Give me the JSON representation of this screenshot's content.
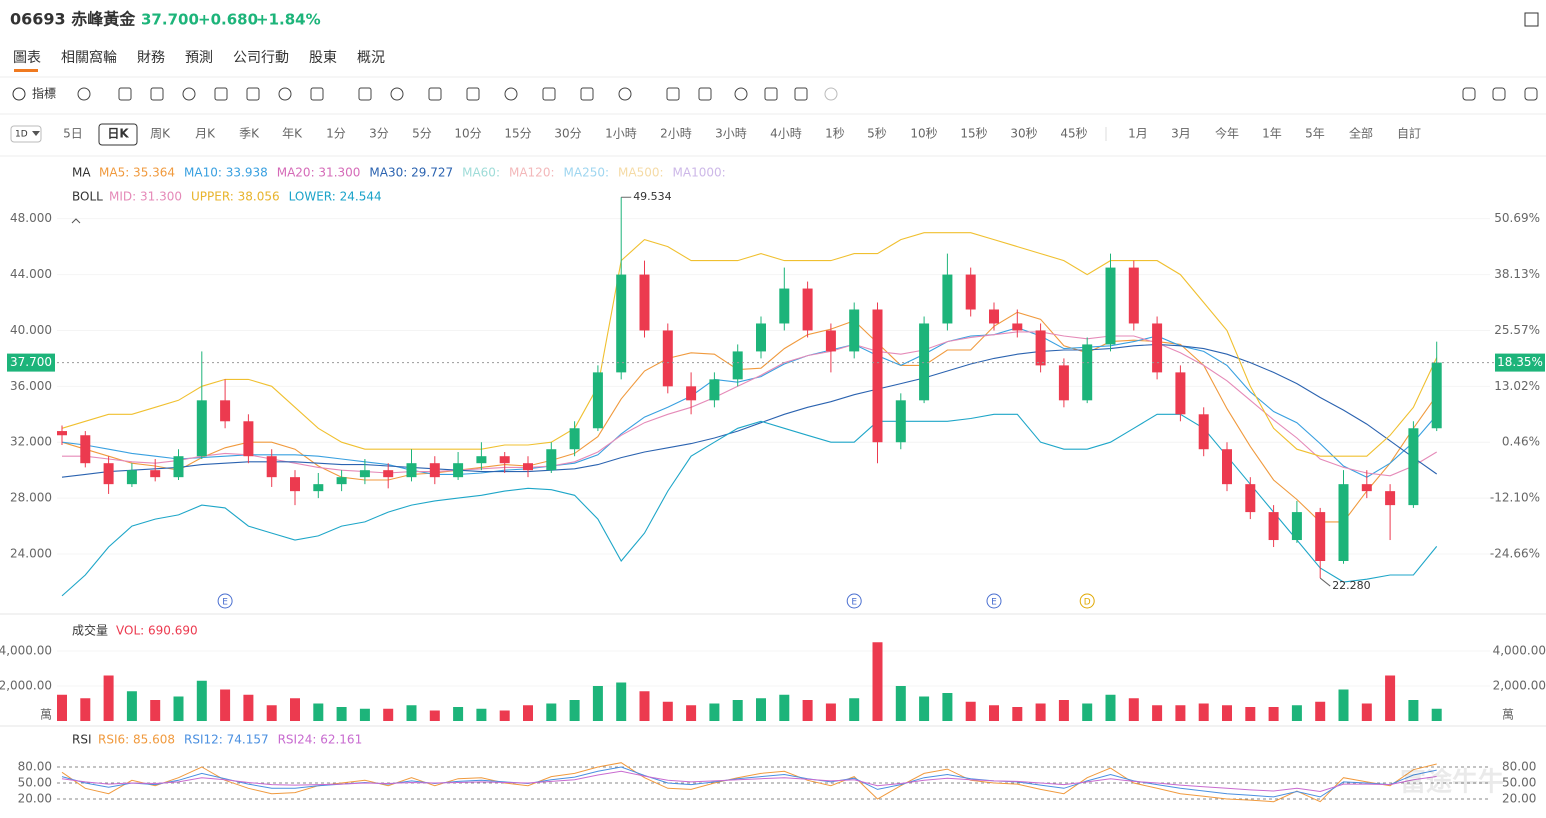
{
  "header": {
    "title": "06693 赤峰黃金",
    "price": "37.700",
    "change": "+0.680",
    "change_pct": "+1.84%"
  },
  "tabs": [
    "圖表",
    "相關窩輪",
    "財務",
    "預測",
    "公司行動",
    "股東",
    "概況"
  ],
  "toolbar": {
    "indicator": "指標"
  },
  "periods": {
    "current": "1D",
    "items": [
      "5日",
      "日K",
      "周K",
      "月K",
      "季K",
      "年K",
      "1分",
      "3分",
      "5分",
      "10分",
      "15分",
      "30分",
      "1小時",
      "2小時",
      "3小時",
      "4小時",
      "1秒",
      "5秒",
      "10秒",
      "15秒",
      "30秒",
      "45秒",
      "1月",
      "3月",
      "今年",
      "1年",
      "5年",
      "全部",
      "自訂"
    ],
    "active": 1
  },
  "chart_data": {
    "type": "candlestick",
    "up_color": "#1db47a",
    "down_color": "#ec3a4f",
    "candles": [
      [
        32.8,
        33.2,
        31.8,
        32.5
      ],
      [
        32.5,
        32.8,
        30.2,
        30.5
      ],
      [
        30.5,
        31,
        28.3,
        29
      ],
      [
        29,
        30.5,
        28.8,
        30
      ],
      [
        30,
        30.8,
        29.2,
        29.5
      ],
      [
        29.5,
        31.5,
        29.3,
        31
      ],
      [
        31,
        38.5,
        30.8,
        35
      ],
      [
        35,
        36.5,
        33,
        33.5
      ],
      [
        33.5,
        34,
        30.5,
        31
      ],
      [
        31,
        31.5,
        28.8,
        29.5
      ],
      [
        29.5,
        30,
        27.5,
        28.5
      ],
      [
        28.5,
        29.8,
        28,
        29
      ],
      [
        29,
        30,
        28.5,
        29.5
      ],
      [
        29.5,
        30.8,
        29,
        30
      ],
      [
        30,
        30.5,
        28.7,
        29.5
      ],
      [
        29.5,
        31.5,
        29.2,
        30.5
      ],
      [
        30.5,
        31,
        29,
        29.5
      ],
      [
        29.5,
        31.3,
        29.3,
        30.5
      ],
      [
        30.5,
        32,
        30,
        31
      ],
      [
        31,
        31.3,
        29.8,
        30.5
      ],
      [
        30.5,
        31,
        29.5,
        30
      ],
      [
        30,
        32,
        29.8,
        31.5
      ],
      [
        31.5,
        33.5,
        31,
        33
      ],
      [
        33,
        37.5,
        32.8,
        37
      ],
      [
        37,
        49.534,
        36.5,
        44
      ],
      [
        44,
        45,
        39.5,
        40
      ],
      [
        40,
        40.5,
        35.5,
        36
      ],
      [
        36,
        37,
        34,
        35
      ],
      [
        35,
        37,
        34.5,
        36.5
      ],
      [
        36.5,
        39,
        36,
        38.5
      ],
      [
        38.5,
        41,
        38,
        40.5
      ],
      [
        40.5,
        44.5,
        40,
        43
      ],
      [
        43,
        43.5,
        39.5,
        40
      ],
      [
        40,
        40.5,
        37,
        38.5
      ],
      [
        38.5,
        42,
        38,
        41.5
      ],
      [
        41.5,
        42,
        30.5,
        32
      ],
      [
        32,
        35.5,
        31.5,
        35
      ],
      [
        35,
        41,
        34.8,
        40.5
      ],
      [
        40.5,
        45.5,
        40,
        44
      ],
      [
        44,
        44.5,
        41,
        41.5
      ],
      [
        41.5,
        42,
        40,
        40.5
      ],
      [
        40.5,
        41.5,
        39.5,
        40
      ],
      [
        40,
        40.5,
        37,
        37.5
      ],
      [
        37.5,
        38,
        34.5,
        35
      ],
      [
        35,
        39.5,
        34.8,
        39
      ],
      [
        39,
        45.5,
        38.5,
        44.5
      ],
      [
        44.5,
        45,
        40,
        40.5
      ],
      [
        40.5,
        41,
        36.5,
        37
      ],
      [
        37,
        37.5,
        33.5,
        34
      ],
      [
        34,
        34.5,
        31,
        31.5
      ],
      [
        31.5,
        32,
        28.5,
        29
      ],
      [
        29,
        29.5,
        26.5,
        27
      ],
      [
        27,
        27.5,
        24.5,
        25
      ],
      [
        25,
        27.8,
        24.8,
        27
      ],
      [
        27,
        27.3,
        22.28,
        23.5
      ],
      [
        23.5,
        30,
        23.3,
        29
      ],
      [
        29,
        30,
        28,
        28.5
      ],
      [
        28.5,
        29,
        25,
        27.5
      ],
      [
        27.5,
        33.5,
        27.3,
        33
      ],
      [
        33,
        39.2,
        32.8,
        37.7
      ]
    ],
    "ylim": [
      19.85,
      52.2
    ],
    "yticks": [
      {
        "value": 24,
        "label": "24.000"
      },
      {
        "value": 28,
        "label": "28.000"
      },
      {
        "value": 32,
        "label": "32.000"
      },
      {
        "value": 36,
        "label": "36.000"
      },
      {
        "value": 40,
        "label": "40.000"
      },
      {
        "value": 44,
        "label": "44.000"
      },
      {
        "value": 48,
        "label": "48.000"
      }
    ],
    "y2lim": [
      -37.69,
      63.87
    ],
    "y2ticks": [
      {
        "value": -24.66,
        "label": "-24.66%"
      },
      {
        "value": -12.1,
        "label": "-12.10%"
      },
      {
        "value": 0.46,
        "label": "0.46%"
      },
      {
        "value": 13.02,
        "label": "13.02%"
      },
      {
        "value": 25.57,
        "label": "25.57%"
      },
      {
        "value": 38.13,
        "label": "38.13%"
      },
      {
        "value": 50.69,
        "label": "50.69%"
      }
    ],
    "lines": [
      {
        "color": "#f09a3e",
        "values": [
          32,
          31.5,
          31,
          30.5,
          30.3,
          30,
          30.9,
          31.6,
          32,
          32,
          31.5,
          30.3,
          29.5,
          29.3,
          29.3,
          29.7,
          29.8,
          30,
          30.2,
          30.4,
          30.3,
          30.7,
          31.2,
          32.4,
          35.1,
          37.1,
          38,
          38.4,
          38.3,
          37.2,
          37.3,
          38.7,
          39.7,
          40.1,
          40.7,
          39.1,
          37.5,
          37.5,
          38.6,
          38.6,
          40.3,
          41.3,
          40.8,
          38.9,
          38.4,
          39.2,
          39.3,
          39.2,
          39,
          37.5,
          34.4,
          31.7,
          29.3,
          27.9,
          26.3,
          26.3,
          28.5,
          30.5,
          33,
          35.36
        ]
      },
      {
        "color": "#39a0e0",
        "values": [
          32,
          31.8,
          31.5,
          31.2,
          31,
          30.8,
          30.9,
          31,
          31.1,
          31.1,
          31.1,
          31,
          30.8,
          30.6,
          30.4,
          30,
          29.7,
          29.7,
          29.8,
          30,
          30.1,
          30.3,
          30.5,
          31.1,
          32.6,
          33.8,
          34.5,
          35.3,
          36.5,
          36.3,
          36.7,
          37.6,
          38.2,
          38.6,
          39,
          38.2,
          37.5,
          38.3,
          39.2,
          39.6,
          39.7,
          40.2,
          39.6,
          38.7,
          38.8,
          38.9,
          39.2,
          39.6,
          38.9,
          38.5,
          37.5,
          35.6,
          34.2,
          33.4,
          31.9,
          30.3,
          29.5,
          30.5,
          32,
          33.94
        ]
      },
      {
        "color": "#e58ab8",
        "values": [
          31,
          31,
          30.8,
          30.6,
          30.5,
          30.7,
          31,
          31.2,
          31.1,
          30.8,
          30.5,
          30.2,
          30,
          29.9,
          29.8,
          29.9,
          29.9,
          30,
          30.1,
          30.2,
          30.2,
          30.3,
          30.6,
          31.3,
          32.5,
          33.4,
          34,
          34.5,
          35.2,
          36,
          36.8,
          37.7,
          38.2,
          38.5,
          39,
          38.5,
          38.3,
          38.6,
          39.2,
          39.5,
          39.7,
          39.9,
          39.9,
          39.6,
          39.4,
          39.6,
          39.6,
          39.1,
          38.4,
          37.5,
          36.4,
          35,
          33.6,
          32.3,
          30.8,
          30.2,
          29.8,
          29.6,
          30.3,
          31.3
        ]
      },
      {
        "color": "#2b63b0",
        "values": [
          29.5,
          29.7,
          29.9,
          30,
          30.1,
          30.2,
          30.4,
          30.5,
          30.6,
          30.6,
          30.6,
          30.5,
          30.4,
          30.4,
          30.3,
          30.2,
          30.1,
          30,
          29.9,
          29.9,
          29.9,
          30,
          30.1,
          30.4,
          30.9,
          31.3,
          31.6,
          31.9,
          32.3,
          32.8,
          33.4,
          34,
          34.5,
          34.9,
          35.4,
          35.8,
          36.2,
          36.6,
          37.1,
          37.6,
          38,
          38.3,
          38.5,
          38.6,
          38.6,
          38.7,
          38.9,
          39,
          38.9,
          38.7,
          38.3,
          37.7,
          37,
          36.2,
          35.2,
          34.3,
          33.3,
          32.1,
          30.9,
          29.727
        ]
      },
      {
        "color": "#f0c030",
        "values": [
          33,
          33.5,
          34,
          34,
          34.5,
          35,
          36,
          36.5,
          36.5,
          36,
          34.5,
          33,
          32,
          31.5,
          31.5,
          31.5,
          31.5,
          31.5,
          31.5,
          31.8,
          31.8,
          32,
          33,
          36,
          45,
          46.5,
          46,
          45,
          45,
          45,
          45.5,
          45,
          45,
          45,
          45.5,
          45.5,
          46.5,
          47,
          47,
          47,
          46.5,
          46,
          45.5,
          45,
          44,
          45,
          45,
          45,
          44,
          42,
          40,
          36,
          33,
          31.5,
          31,
          31,
          31,
          32.5,
          34.5,
          38.056
        ]
      },
      {
        "color": "#1ea6c8",
        "values": [
          21,
          22.5,
          24.5,
          26,
          26.5,
          26.8,
          27.5,
          27.3,
          26,
          25.5,
          25,
          25.3,
          26,
          26.3,
          27,
          27.5,
          27.8,
          28,
          28.2,
          28.5,
          28.7,
          28.6,
          28.2,
          26.5,
          23.5,
          25.5,
          28.5,
          31,
          32,
          33,
          33.5,
          33,
          32.5,
          32,
          32,
          33.5,
          33.5,
          33.5,
          33.5,
          33.7,
          34,
          34,
          32,
          31.5,
          31.5,
          32,
          33,
          34,
          34,
          33,
          31,
          29,
          27,
          25,
          23,
          22,
          22.2,
          22.5,
          22.5,
          24.544
        ]
      }
    ],
    "ma_legend": {
      "label": "MA",
      "items": [
        {
          "text": "MA5: 35.364",
          "color": "#f09a3e"
        },
        {
          "text": "MA10: 33.938",
          "color": "#39a0e0"
        },
        {
          "text": "MA20: 31.300",
          "color": "#d56bb8"
        },
        {
          "text": "MA30: 29.727",
          "color": "#2b63b0"
        },
        {
          "text": "MA60:",
          "color": "#9fdcd8"
        },
        {
          "text": "MA120:",
          "color": "#f3b8ba"
        },
        {
          "text": "MA250:",
          "color": "#9fd6f0"
        },
        {
          "text": "MA500:",
          "color": "#f5dba6"
        },
        {
          "text": "MA1000:",
          "color": "#cdb8e8"
        }
      ]
    },
    "boll_legend": {
      "label": "BOLL",
      "items": [
        {
          "text": "MID: 31.300",
          "color": "#e58ab8"
        },
        {
          "text": "UPPER: 38.056",
          "color": "#e8b42c"
        },
        {
          "text": "LOWER: 24.544",
          "color": "#1aa3c9"
        }
      ]
    },
    "last_price": {
      "value": 37.7,
      "label": "37.700"
    },
    "last_change_pct": {
      "value": 18.35,
      "label": "18.35%"
    },
    "high_label": {
      "candle": 24,
      "label": "49.534"
    },
    "low_label": {
      "candle": 54,
      "label": "22.280"
    },
    "events": [
      {
        "label": "E",
        "candle": 7,
        "color": "#4a6fd0"
      },
      {
        "label": "E",
        "candle": 34,
        "color": "#4a6fd0"
      },
      {
        "label": "E",
        "candle": 40,
        "color": "#4a6fd0"
      },
      {
        "label": "D",
        "candle": 44,
        "color": "#e0a800"
      }
    ],
    "volume": {
      "title": "成交量",
      "legend": "VOL: 690.690",
      "unit": "萬",
      "values": [
        1500,
        1300,
        2600,
        1700,
        1200,
        1400,
        2300,
        1800,
        1500,
        900,
        1300,
        1000,
        800,
        700,
        700,
        900,
        600,
        800,
        700,
        600,
        900,
        1000,
        1200,
        2000,
        2200,
        1700,
        1100,
        900,
        1000,
        1200,
        1300,
        1500,
        1200,
        1000,
        1300,
        4500,
        2000,
        1400,
        1600,
        1100,
        900,
        800,
        1000,
        1200,
        1000,
        1500,
        1300,
        900,
        900,
        1000,
        900,
        800,
        800,
        900,
        1100,
        1800,
        1000,
        2600,
        1200,
        700
      ],
      "ylim": [
        0,
        4629
      ],
      "yticks": [
        {
          "value": 2000,
          "label": "2,000.00"
        },
        {
          "value": 4000,
          "label": "4,000.00"
        }
      ]
    },
    "rsi": {
      "title": "RSI",
      "ylim": [
        -4.4,
        102.5
      ],
      "yticks": [
        {
          "value": 20,
          "label": "20.00"
        },
        {
          "value": 50,
          "label": "50.00"
        },
        {
          "value": 80,
          "label": "80.00"
        }
      ],
      "series": [
        {
          "name": "RSI6: 85.608",
          "color": "#f09a3e",
          "values": [
            70,
            40,
            30,
            55,
            45,
            60,
            80,
            55,
            40,
            30,
            32,
            45,
            50,
            55,
            45,
            60,
            45,
            58,
            60,
            50,
            45,
            62,
            68,
            80,
            88,
            60,
            40,
            38,
            50,
            60,
            68,
            72,
            55,
            45,
            62,
            20,
            45,
            68,
            76,
            55,
            50,
            48,
            38,
            30,
            60,
            78,
            50,
            40,
            30,
            25,
            20,
            18,
            15,
            35,
            15,
            60,
            52,
            45,
            75,
            85.608
          ]
        },
        {
          "name": "RSI12: 74.157",
          "color": "#4a8fe0",
          "values": [
            62,
            50,
            42,
            50,
            47,
            55,
            68,
            58,
            48,
            40,
            40,
            45,
            48,
            51,
            48,
            54,
            49,
            53,
            55,
            52,
            49,
            56,
            61,
            72,
            80,
            64,
            50,
            47,
            52,
            58,
            62,
            66,
            58,
            52,
            59,
            38,
            47,
            60,
            66,
            58,
            54,
            52,
            46,
            40,
            54,
            66,
            54,
            47,
            40,
            35,
            30,
            27,
            24,
            34,
            24,
            52,
            50,
            47,
            65,
            74.157
          ]
        },
        {
          "name": "RSI24: 62.161",
          "color": "#c86bd0",
          "values": [
            58,
            52,
            48,
            50,
            49,
            52,
            60,
            56,
            51,
            47,
            46,
            47,
            48,
            50,
            49,
            51,
            50,
            51,
            52,
            51,
            50,
            53,
            56,
            65,
            72,
            63,
            55,
            52,
            54,
            56,
            58,
            60,
            57,
            54,
            56,
            45,
            49,
            55,
            59,
            56,
            54,
            53,
            50,
            47,
            52,
            58,
            53,
            50,
            46,
            43,
            40,
            37,
            35,
            40,
            34,
            48,
            48,
            47,
            56,
            62.161
          ]
        }
      ]
    },
    "watermark": "富途牛牛"
  }
}
